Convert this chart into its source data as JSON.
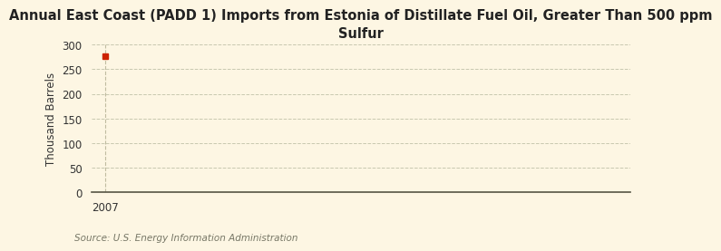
{
  "title": "Annual East Coast (PADD 1) Imports from Estonia of Distillate Fuel Oil, Greater Than 500 ppm\nSulfur",
  "ylabel": "Thousand Barrels",
  "background_color": "#fdf6e3",
  "data_x": [
    2007
  ],
  "data_y": [
    276
  ],
  "marker_color": "#cc2200",
  "marker_style": "s",
  "marker_size": 4,
  "xlim": [
    2006.6,
    2022
  ],
  "ylim": [
    0,
    300
  ],
  "yticks": [
    0,
    50,
    100,
    150,
    200,
    250,
    300
  ],
  "xticks": [
    2007
  ],
  "xticklabels": [
    "2007"
  ],
  "grid_color": "#c8c8b0",
  "grid_style": "--",
  "vline_x": 2007,
  "vline_color": "#c0bca0",
  "vline_style": "--",
  "source_text": "Source: U.S. Energy Information Administration",
  "title_fontsize": 10.5,
  "axis_label_fontsize": 8.5,
  "tick_fontsize": 8.5,
  "source_fontsize": 7.5
}
